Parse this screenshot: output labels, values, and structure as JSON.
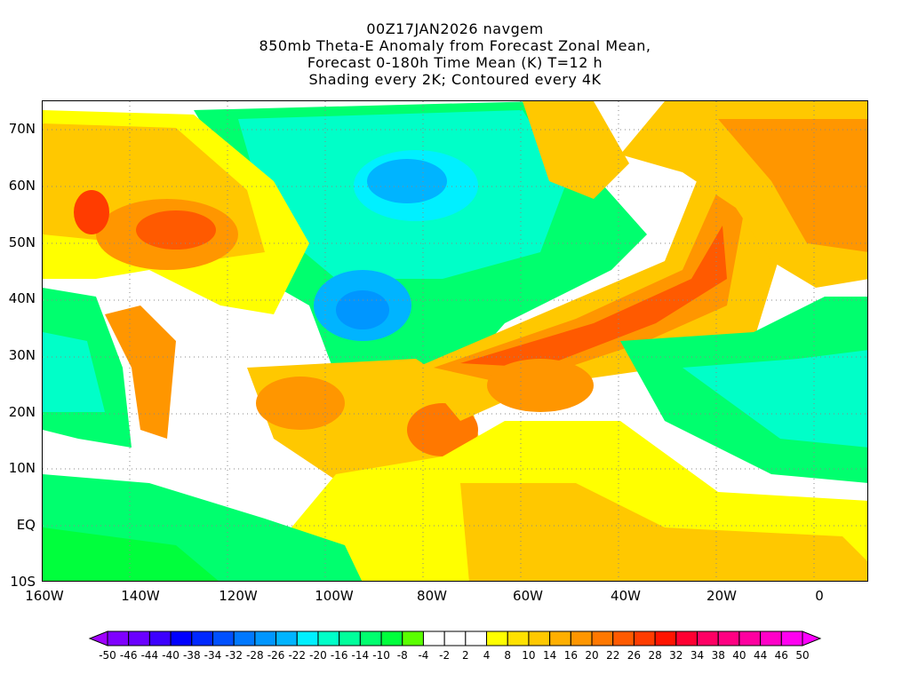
{
  "title": {
    "line1": "00Z17JAN2026 navgem",
    "line2": "850mb Theta-E Anomaly from Forecast Zonal Mean,",
    "line3": "Forecast 0-180h Time Mean (K) T=12 h",
    "line4": "Shading every 2K; Contoured every 4K"
  },
  "lat_labels": [
    "70N",
    "60N",
    "50N",
    "40N",
    "30N",
    "20N",
    "10N",
    "EQ",
    "10S"
  ],
  "lon_labels": [
    "160W",
    "140W",
    "120W",
    "100W",
    "80W",
    "60W",
    "40W",
    "20W",
    "0"
  ],
  "colorbar": {
    "labels": [
      "-50",
      "-46",
      "-44",
      "-40",
      "-38",
      "-34",
      "-32",
      "-28",
      "-26",
      "-22",
      "-20",
      "-16",
      "-14",
      "-10",
      "-8",
      "-4",
      "-2",
      "2",
      "4",
      "8",
      "10",
      "14",
      "16",
      "20",
      "22",
      "26",
      "28",
      "32",
      "34",
      "38",
      "40",
      "44",
      "46",
      "50"
    ],
    "colors": [
      "#7f00ff",
      "#6a00ff",
      "#3c00ff",
      "#0000ff",
      "#0028ff",
      "#0050ff",
      "#0078ff",
      "#0096ff",
      "#00b4ff",
      "#00f0ff",
      "#00ffc8",
      "#00ff9b",
      "#00ff6e",
      "#00ff3c",
      "#5aff00",
      "#ffffff",
      "#ffffff",
      "#ffffff",
      "#ffff00",
      "#ffe100",
      "#ffc800",
      "#ffaf00",
      "#ff9600",
      "#ff7800",
      "#ff5a00",
      "#ff3c00",
      "#ff1400",
      "#ff0032",
      "#ff0064",
      "#ff0082",
      "#ff00a0",
      "#ff00c8",
      "#ff00f0"
    ],
    "under_color": "#a000ff",
    "over_color": "#ff00ff"
  }
}
